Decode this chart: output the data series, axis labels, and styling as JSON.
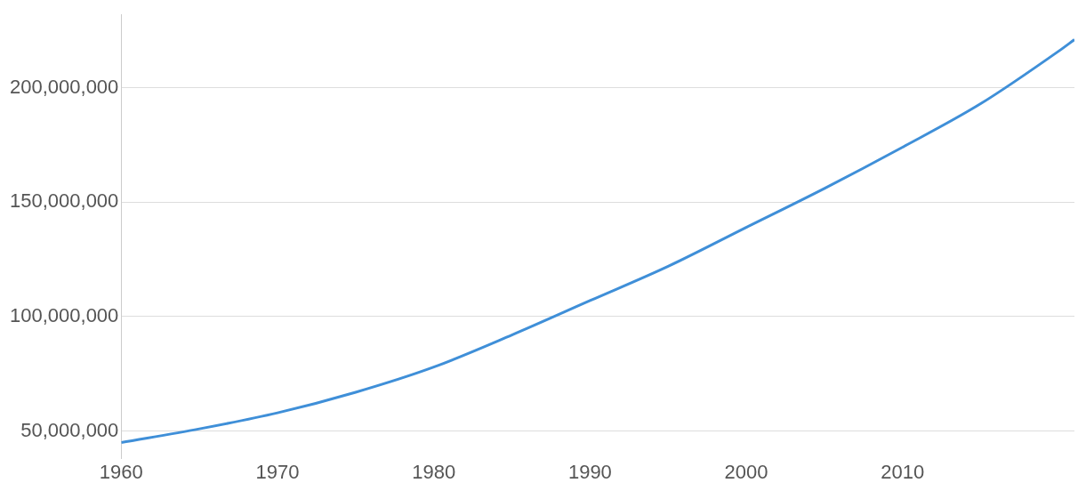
{
  "chart_data": {
    "type": "line",
    "x": [
      1960,
      1965,
      1970,
      1975,
      1980,
      1985,
      1990,
      1995,
      2000,
      2005,
      2010,
      2015,
      2020,
      2021
    ],
    "series": [
      {
        "color": "#3f8fd8",
        "values": [
          45000000,
          51000000,
          58000000,
          67000000,
          78000000,
          92000000,
          107000000,
          122000000,
          139000000,
          156000000,
          174000000,
          193000000,
          216000000,
          221000000
        ]
      }
    ],
    "xlim": [
      1960,
      2021
    ],
    "xticks": [
      1960,
      1970,
      1980,
      1990,
      2000,
      2010
    ],
    "ylim": [
      38000000,
      232000000
    ],
    "yticks": [
      {
        "value": 50000000,
        "label": "50,000,000"
      },
      {
        "value": 100000000,
        "label": "100,000,000"
      },
      {
        "value": 150000000,
        "label": "150,000,000"
      },
      {
        "value": 200000000,
        "label": "200,000,000"
      }
    ],
    "grid": "y",
    "marker": "none",
    "line_style": "solid"
  }
}
